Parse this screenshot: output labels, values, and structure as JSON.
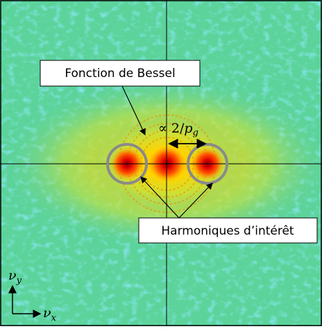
{
  "annotations": {
    "bessel": "Fonction de Bessel",
    "spacing": {
      "text": "∝ 2/",
      "var": "p",
      "sub": "g"
    },
    "harmonics": "Harmoniques d’intérêt"
  },
  "axes": {
    "y": {
      "symbol": "ν",
      "sub": "y"
    },
    "x": {
      "symbol": "ν",
      "sub": "x"
    }
  }
}
